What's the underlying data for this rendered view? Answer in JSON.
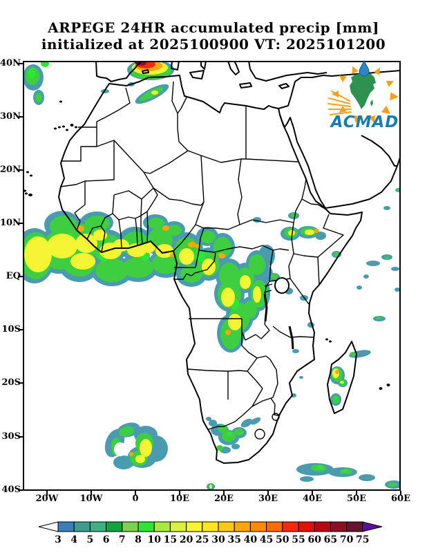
{
  "title": {
    "line1": "ARPEGE 24HR accumulated precip [mm]",
    "line2": "initialized at 2025100900 VT: 2025101200"
  },
  "axes": {
    "lat_labels": [
      "40N",
      "30N",
      "20N",
      "10N",
      "EQ",
      "10S",
      "20S",
      "30S",
      "40S"
    ],
    "lon_labels": [
      "20W",
      "10W",
      "0",
      "10E",
      "20E",
      "30E",
      "40E",
      "50E",
      "60E"
    ]
  },
  "colorbar": {
    "labels": [
      "3",
      "4",
      "5",
      "6",
      "7",
      "8",
      "10",
      "15",
      "20",
      "25",
      "30",
      "35",
      "40",
      "45",
      "50",
      "55",
      "60",
      "65",
      "70",
      "75"
    ],
    "colors": [
      "#3C7EB8",
      "#3E9E8E",
      "#40B084",
      "#12A440",
      "#7ED04E",
      "#30E436",
      "#A6EA3E",
      "#D8F03E",
      "#FAF42E",
      "#FFE61C",
      "#FFC616",
      "#FFA60E",
      "#FF8A08",
      "#FF6A04",
      "#FA2A06",
      "#E01204",
      "#BA0612",
      "#8E0E24",
      "#671430"
    ],
    "under_arrow_color": "#FFFFFF",
    "over_arrow_color": "#5C0FA0"
  },
  "logo": {
    "text": "ACMAD",
    "text_color": "#1C7CA8",
    "africa_color": "#2E9152",
    "accent_color": "#F2A01E",
    "drop_color": "#2E86C8"
  },
  "precip_palette": {
    "teal": "#4A9BB0",
    "green": "#3FCE3F",
    "bright_green": "#2FE636",
    "yellow": "#F4F434",
    "orange": "#FFA50E",
    "red": "#F22A06",
    "dark_red": "#8E0E24",
    "maroon": "#551126"
  }
}
